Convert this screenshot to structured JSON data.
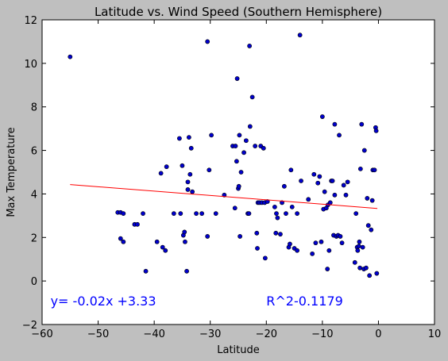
{
  "chart_data": {
    "type": "scatter",
    "title": "Latitude vs. Wind Speed (Southern Hemisphere)",
    "xlabel": "Latitude",
    "ylabel": "Max Temperature",
    "xlim": [
      -60,
      10
    ],
    "ylim": [
      -2,
      12
    ],
    "xticks": [
      -60,
      -50,
      -40,
      -30,
      -20,
      -10,
      0,
      10
    ],
    "yticks": [
      -2,
      0,
      2,
      4,
      6,
      8,
      10,
      12
    ],
    "grid": false,
    "colors": {
      "background": "#bfbfbf",
      "plot_area": "#ffffff",
      "points": "#0000cc",
      "regression": "#ff0000",
      "annotation": "#0000ff"
    },
    "regression": {
      "slope": -0.02,
      "intercept": 3.33,
      "x_range": [
        -55,
        -0.2
      ]
    },
    "annotations": [
      {
        "text": "y= -0.02x +3.33",
        "x": -58.5,
        "y": -0.9
      },
      {
        "text": "R^2-0.1179",
        "x": -20,
        "y": -0.9
      }
    ],
    "points": [
      [
        -55,
        10.3
      ],
      [
        -46.5,
        3.15
      ],
      [
        -46,
        3.15
      ],
      [
        -45.5,
        3.1
      ],
      [
        -46,
        1.95
      ],
      [
        -45.5,
        1.8
      ],
      [
        -43.5,
        2.6
      ],
      [
        -43,
        2.6
      ],
      [
        -42,
        3.1
      ],
      [
        -41.5,
        0.45
      ],
      [
        -39.5,
        1.8
      ],
      [
        -38.8,
        4.95
      ],
      [
        -38.5,
        1.55
      ],
      [
        -38,
        1.4
      ],
      [
        -37.8,
        5.25
      ],
      [
        -36.5,
        3.1
      ],
      [
        -35.5,
        6.55
      ],
      [
        -35.3,
        3.1
      ],
      [
        -35,
        5.3
      ],
      [
        -34.8,
        2.1
      ],
      [
        -34.6,
        2.25
      ],
      [
        -34.5,
        1.8
      ],
      [
        -34.2,
        0.45
      ],
      [
        -34,
        4.2
      ],
      [
        -34,
        4.55
      ],
      [
        -33.8,
        6.6
      ],
      [
        -33.6,
        4.9
      ],
      [
        -33.4,
        6.1
      ],
      [
        -33.2,
        4.1
      ],
      [
        -32.5,
        3.1
      ],
      [
        -31.5,
        3.1
      ],
      [
        -30.5,
        11.0
      ],
      [
        -30.5,
        2.05
      ],
      [
        -30.2,
        5.1
      ],
      [
        -29.8,
        6.7
      ],
      [
        -29,
        3.1
      ],
      [
        -27.5,
        3.95
      ],
      [
        -26,
        6.2
      ],
      [
        -25.6,
        3.35
      ],
      [
        -25.5,
        6.2
      ],
      [
        -25.3,
        5.5
      ],
      [
        -25.2,
        9.3
      ],
      [
        -25,
        4.25
      ],
      [
        -24.9,
        4.35
      ],
      [
        -24.8,
        6.7
      ],
      [
        -24.7,
        2.05
      ],
      [
        -24.5,
        5.0
      ],
      [
        -24,
        5.9
      ],
      [
        -23.6,
        6.45
      ],
      [
        -23.3,
        3.1
      ],
      [
        -23.1,
        3.1
      ],
      [
        -23,
        10.8
      ],
      [
        -22.9,
        7.1
      ],
      [
        -22.5,
        8.45
      ],
      [
        -22,
        6.2
      ],
      [
        -21.7,
        2.2
      ],
      [
        -21.6,
        1.5
      ],
      [
        -21.5,
        3.6
      ],
      [
        -21.2,
        3.6
      ],
      [
        -21,
        6.2
      ],
      [
        -20.8,
        3.6
      ],
      [
        -20.5,
        6.1
      ],
      [
        -20.3,
        3.6
      ],
      [
        -20.2,
        1.05
      ],
      [
        -19.8,
        3.65
      ],
      [
        -18.5,
        3.4
      ],
      [
        -18.3,
        2.2
      ],
      [
        -18.2,
        3.1
      ],
      [
        -18,
        2.9
      ],
      [
        -17.5,
        2.15
      ],
      [
        -17.2,
        3.6
      ],
      [
        -16.8,
        4.35
      ],
      [
        -16.5,
        3.1
      ],
      [
        -16,
        1.55
      ],
      [
        -15.8,
        1.7
      ],
      [
        -15.6,
        5.1
      ],
      [
        -15.4,
        3.4
      ],
      [
        -15,
        1.5
      ],
      [
        -14.5,
        1.4
      ],
      [
        -14.5,
        3.1
      ],
      [
        -14,
        11.3
      ],
      [
        -13.8,
        4.6
      ],
      [
        -12.5,
        3.75
      ],
      [
        -11.8,
        1.25
      ],
      [
        -11.5,
        4.9
      ],
      [
        -11.2,
        1.75
      ],
      [
        -10.8,
        4.5
      ],
      [
        -10.5,
        4.8
      ],
      [
        -10.2,
        1.8
      ],
      [
        -10,
        7.55
      ],
      [
        -9.8,
        3.3
      ],
      [
        -9.6,
        4.1
      ],
      [
        -9.3,
        3.35
      ],
      [
        -9.1,
        0.55
      ],
      [
        -9,
        3.5
      ],
      [
        -8.8,
        1.4
      ],
      [
        -8.6,
        3.6
      ],
      [
        -8.4,
        4.6
      ],
      [
        -8.2,
        4.6
      ],
      [
        -8,
        2.1
      ],
      [
        -7.8,
        3.95
      ],
      [
        -7.8,
        7.2
      ],
      [
        -7.5,
        2.05
      ],
      [
        -7.2,
        2.1
      ],
      [
        -7,
        6.7
      ],
      [
        -6.8,
        2.05
      ],
      [
        -6.5,
        1.75
      ],
      [
        -6.2,
        4.4
      ],
      [
        -5.8,
        3.95
      ],
      [
        -5.5,
        4.55
      ],
      [
        -4.2,
        0.85
      ],
      [
        -4,
        3.1
      ],
      [
        -3.8,
        1.55
      ],
      [
        -3.7,
        1.4
      ],
      [
        -3.5,
        1.6
      ],
      [
        -3.4,
        1.8
      ],
      [
        -3.3,
        0.6
      ],
      [
        -3.2,
        5.15
      ],
      [
        -3,
        7.2
      ],
      [
        -2.8,
        1.55
      ],
      [
        -2.6,
        0.55
      ],
      [
        -2.5,
        6.0
      ],
      [
        -2.2,
        0.6
      ],
      [
        -2,
        3.8
      ],
      [
        -1.8,
        2.55
      ],
      [
        -1.6,
        0.25
      ],
      [
        -1.3,
        2.35
      ],
      [
        -1.1,
        3.7
      ],
      [
        -1,
        5.1
      ],
      [
        -0.7,
        5.1
      ],
      [
        -0.5,
        7.05
      ],
      [
        -0.4,
        6.9
      ],
      [
        -0.3,
        0.35
      ]
    ]
  }
}
